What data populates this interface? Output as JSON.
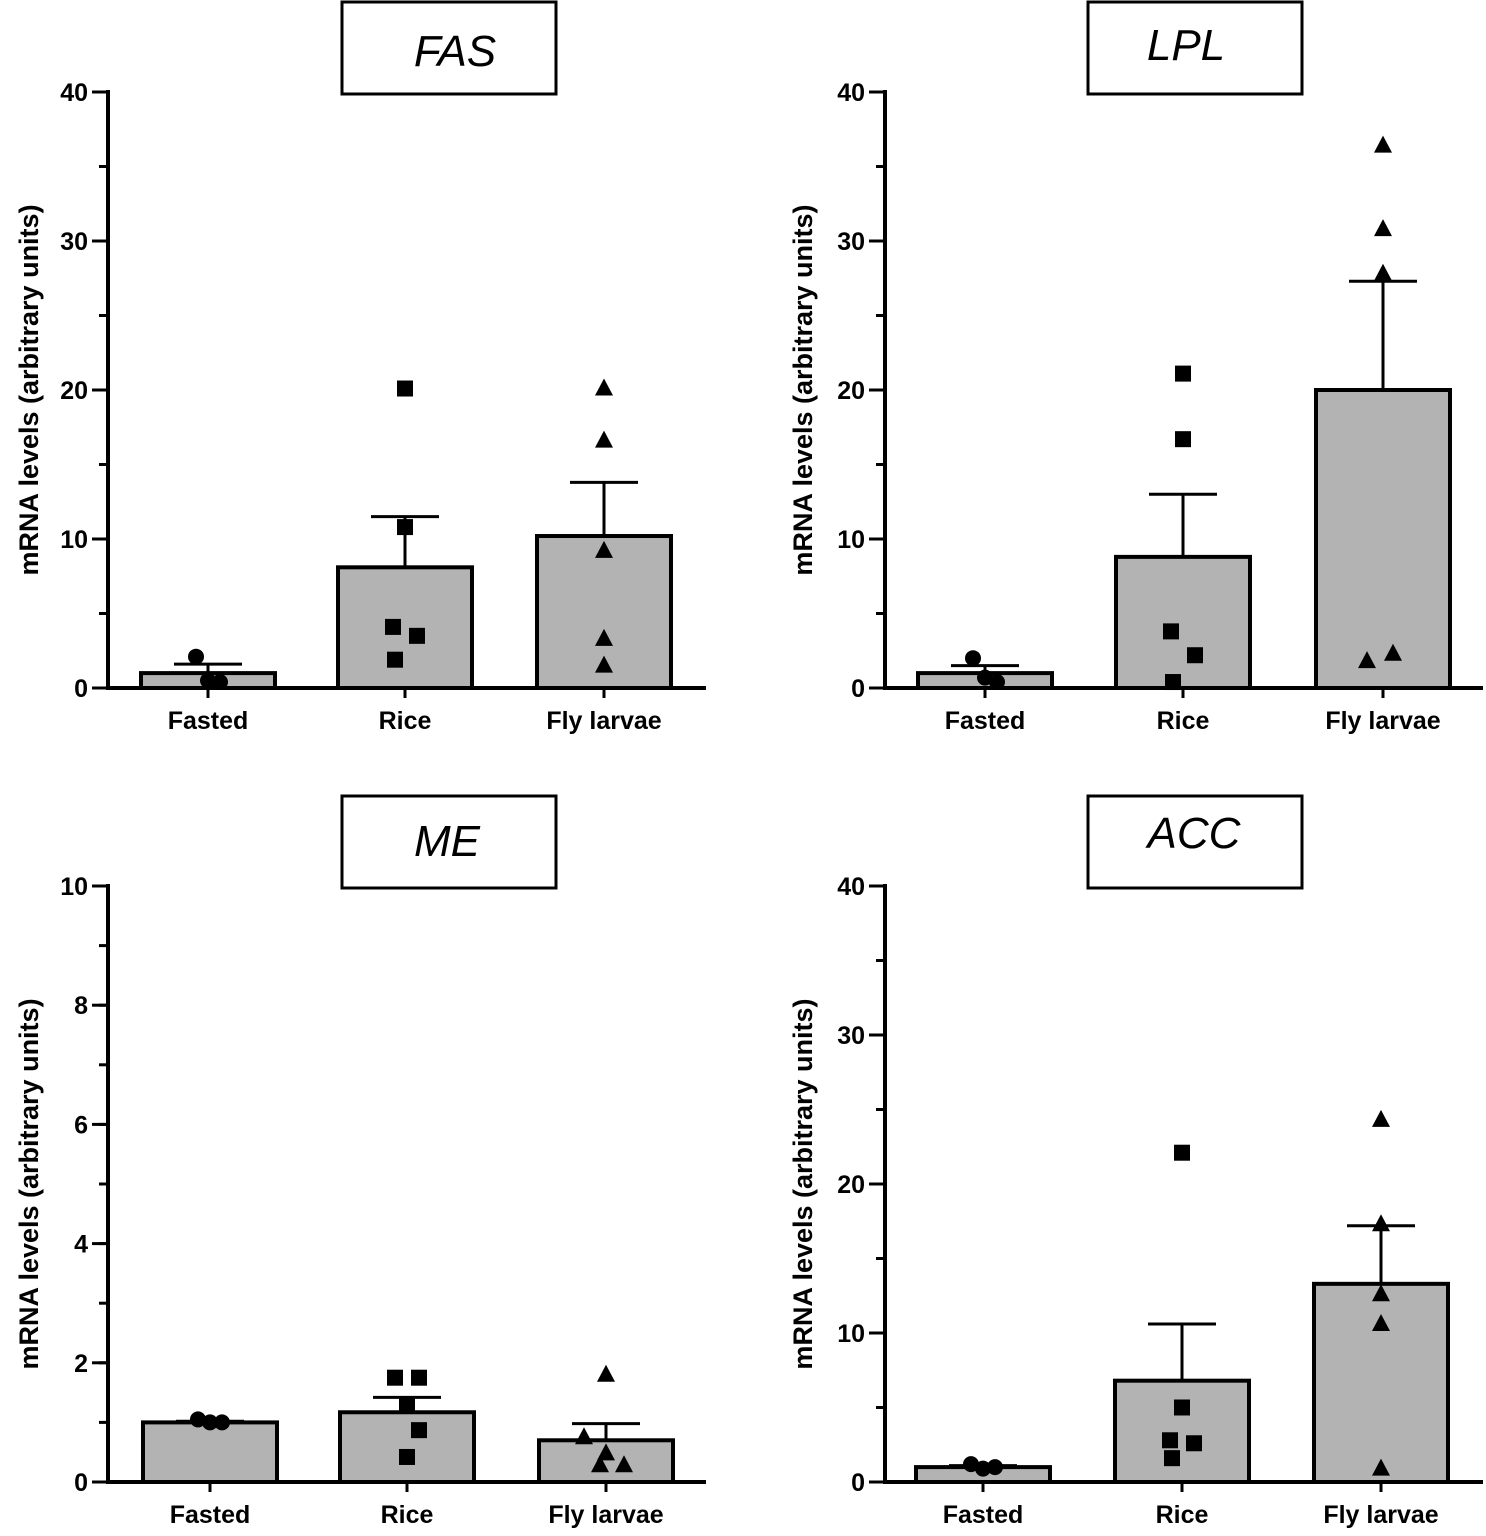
{
  "chart_data": [
    {
      "type": "bar",
      "title": "FAS",
      "ylabel": "mRNA levels (arbitrary units)",
      "categories": [
        "Fasted",
        "Rice",
        "Fly larvae"
      ],
      "values": [
        1.0,
        8.1,
        10.2
      ],
      "error_upper": [
        1.6,
        11.5,
        13.8
      ],
      "markers": [
        "circle",
        "square",
        "triangle"
      ],
      "points": [
        [
          2.1,
          0.5,
          0.4
        ],
        [
          20.1,
          10.8,
          4.1,
          3.5,
          1.9
        ],
        [
          20.1,
          16.6,
          9.2,
          3.3,
          1.5
        ]
      ],
      "ylim": [
        0,
        40
      ],
      "yticks": [
        0,
        10,
        20,
        30,
        40
      ],
      "ytick_labels": [
        "0",
        "10",
        "20",
        "30",
        "40"
      ],
      "minor_step": 5
    },
    {
      "type": "bar",
      "title": "LPL",
      "ylabel": "mRNA levels (arbitrary units)",
      "categories": [
        "Fasted",
        "Rice",
        "Fly larvae"
      ],
      "values": [
        1.0,
        8.8,
        20.0
      ],
      "error_upper": [
        1.5,
        13.0,
        27.3
      ],
      "markers": [
        "circle",
        "square",
        "triangle"
      ],
      "points": [
        [
          2.0,
          0.7,
          0.4
        ],
        [
          21.1,
          16.7,
          3.8,
          2.2,
          0.4
        ],
        [
          36.4,
          30.8,
          27.8,
          2.3,
          1.8
        ]
      ],
      "ylim": [
        0,
        40
      ],
      "yticks": [
        0,
        10,
        20,
        30,
        40
      ],
      "ytick_labels": [
        "0",
        "10",
        "20",
        "30",
        "40"
      ],
      "minor_step": 5
    },
    {
      "type": "bar",
      "title": "ME",
      "ylabel": "mRNA levels (arbitrary units)",
      "categories": [
        "Fasted",
        "Rice",
        "Fly larvae"
      ],
      "values": [
        1.0,
        1.17,
        0.7
      ],
      "error_upper": [
        1.02,
        1.42,
        0.98
      ],
      "markers": [
        "circle",
        "square",
        "triangle"
      ],
      "points": [
        [
          1.05,
          1.0,
          1.0
        ],
        [
          1.75,
          1.75,
          1.3,
          0.87,
          0.42
        ],
        [
          1.8,
          0.75,
          0.48,
          0.28,
          0.28
        ]
      ],
      "ylim": [
        0,
        10
      ],
      "yticks": [
        0,
        2,
        4,
        6,
        8,
        10
      ],
      "ytick_labels": [
        "0",
        "2",
        "4",
        "6",
        "8",
        "10"
      ],
      "minor_step": 1
    },
    {
      "type": "bar",
      "title": "ACC",
      "ylabel": "mRNA levels (arbitrary units)",
      "categories": [
        "Fasted",
        "Rice",
        "Fly larvae"
      ],
      "values": [
        1.0,
        6.8,
        13.3
      ],
      "error_upper": [
        1.1,
        10.6,
        17.2
      ],
      "markers": [
        "circle",
        "square",
        "triangle"
      ],
      "points": [
        [
          1.2,
          0.9,
          1.0
        ],
        [
          22.1,
          5.0,
          2.8,
          2.6,
          1.6
        ],
        [
          24.3,
          17.3,
          12.6,
          10.6,
          0.9
        ]
      ],
      "ylim": [
        0,
        40
      ],
      "yticks": [
        0,
        10,
        20,
        30,
        40
      ],
      "ytick_labels": [
        "0",
        "10",
        "20",
        "30",
        "40"
      ],
      "minor_step": 5
    }
  ]
}
